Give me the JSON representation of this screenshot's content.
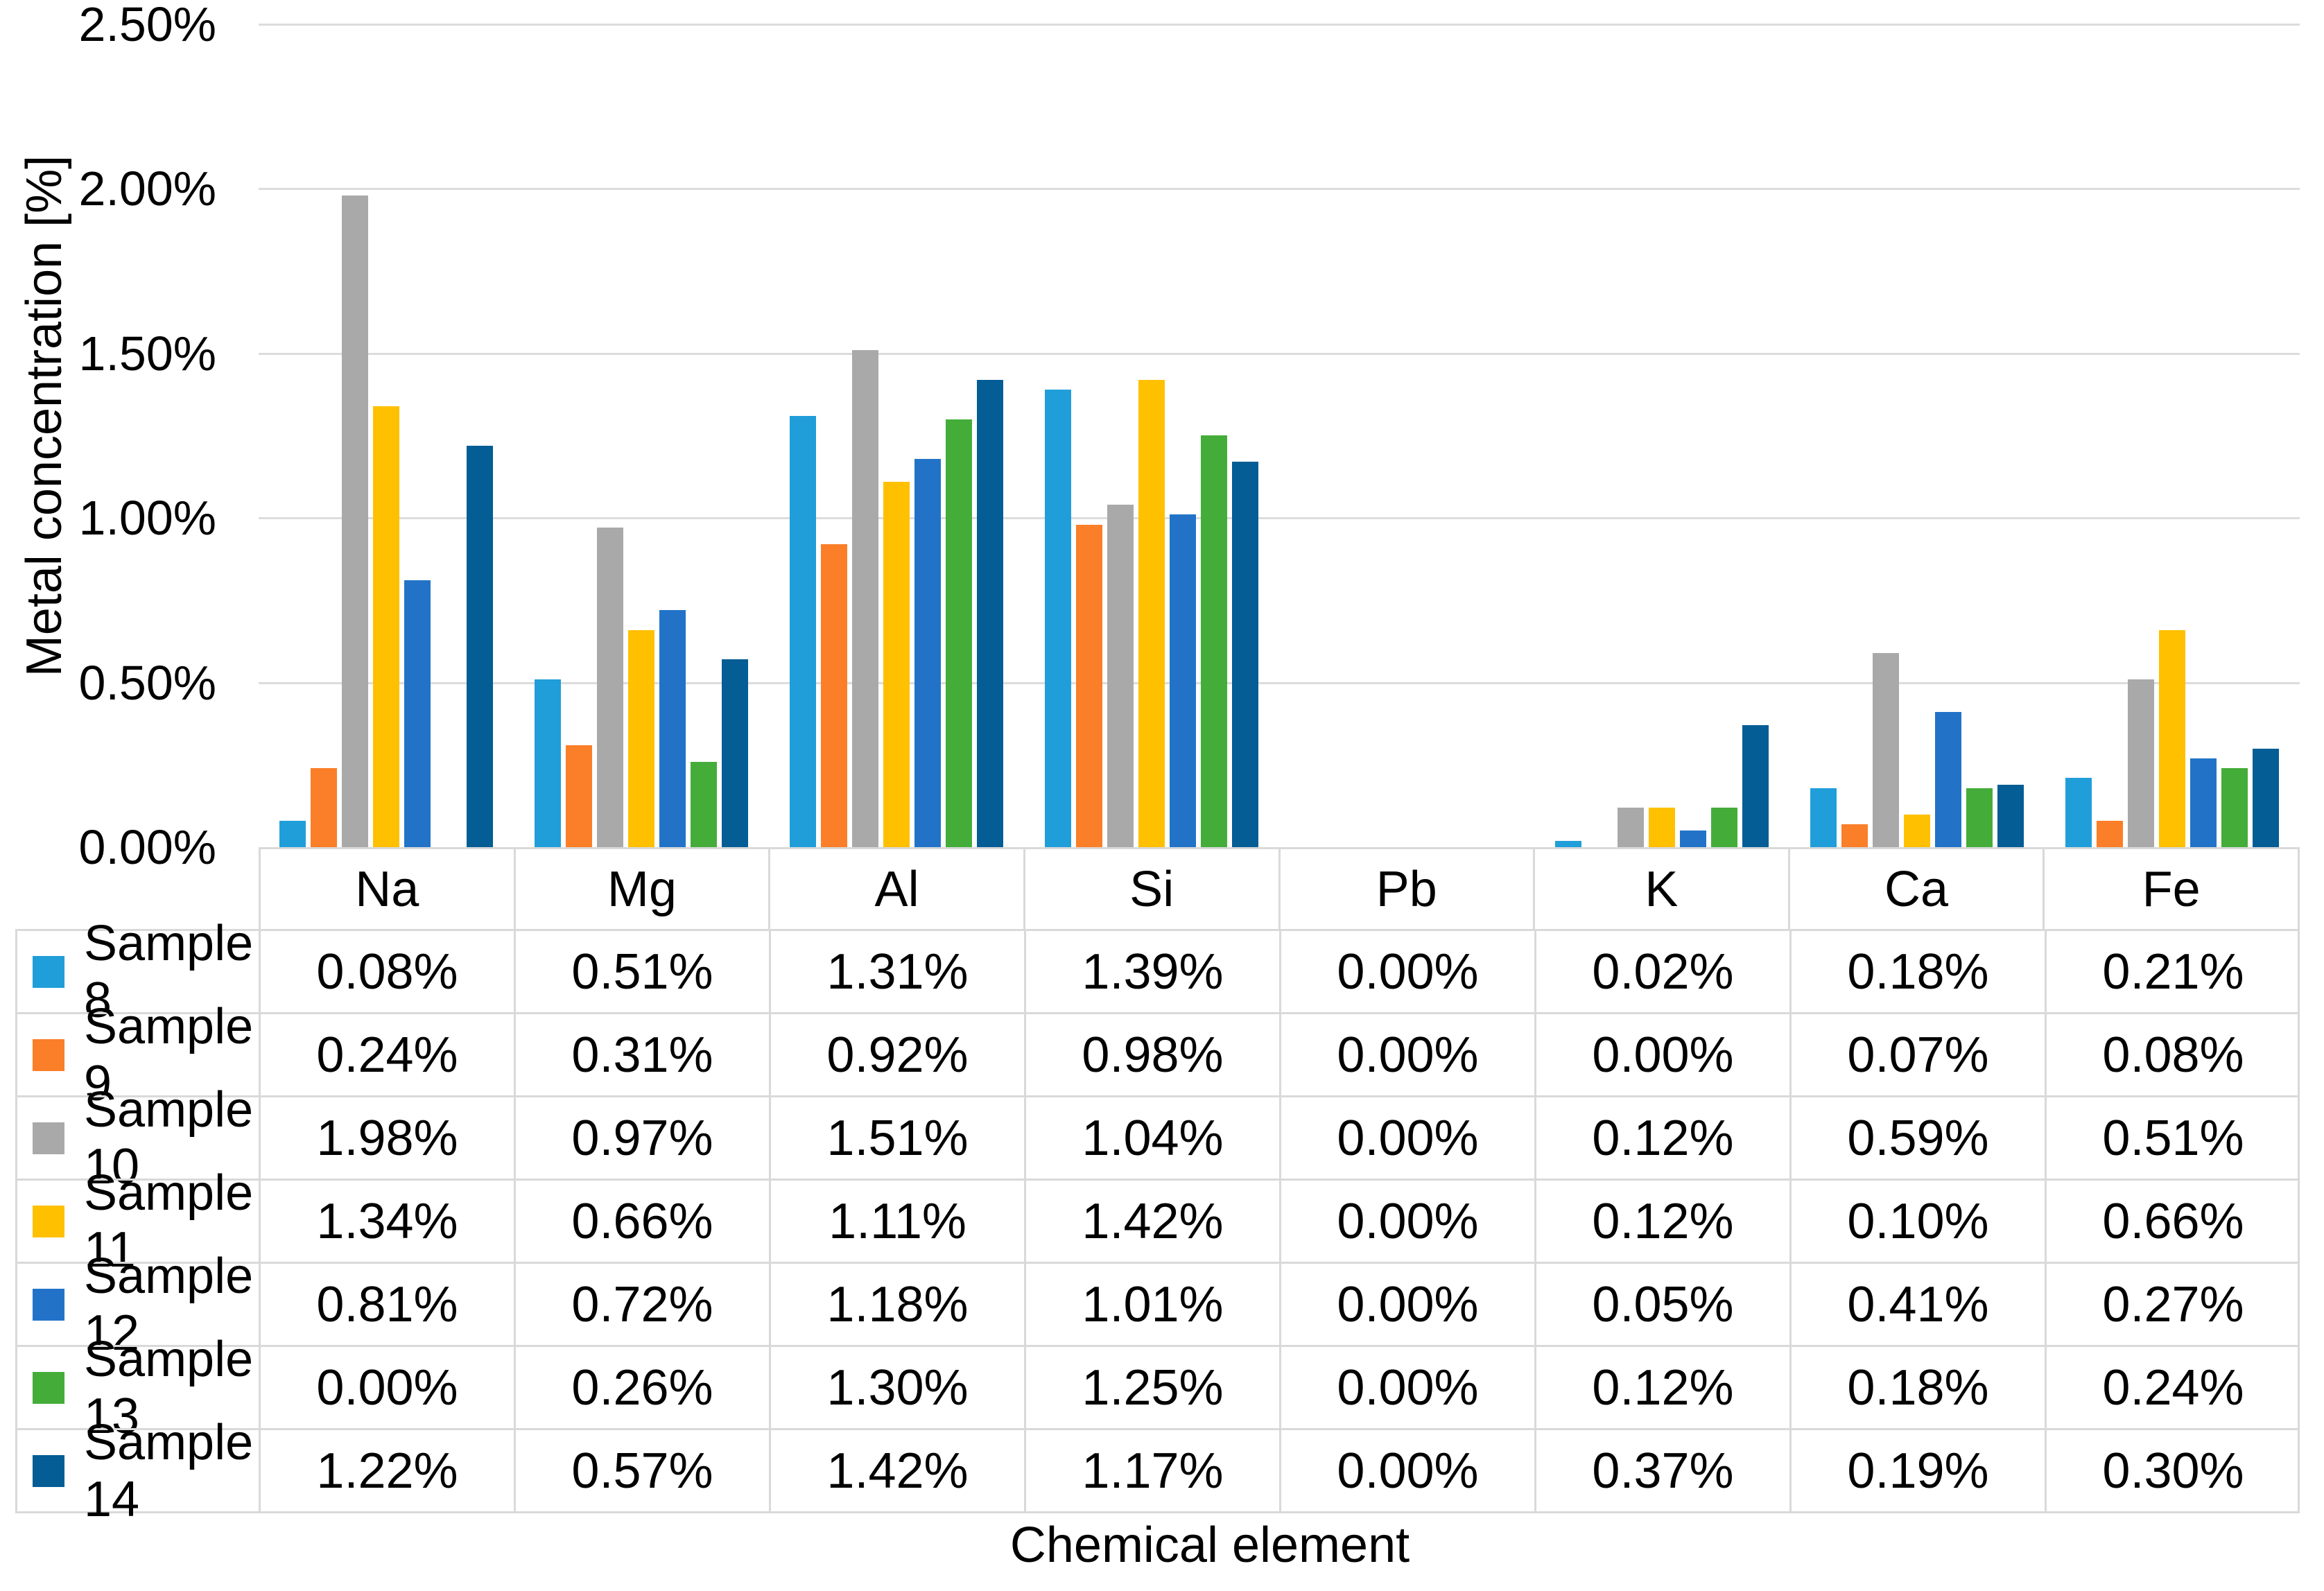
{
  "chart": {
    "y_axis_title": "Metal concentration [%]",
    "x_axis_title": "Chemical element"
  },
  "chart_data": {
    "type": "bar",
    "title": "",
    "xlabel": "Chemical element",
    "ylabel": "Metal concentration [%]",
    "ylim": [
      0,
      2.5
    ],
    "ytick_step": 0.5,
    "y_tick_labels": [
      "2.50%",
      "2.00%",
      "1.50%",
      "1.00%",
      "0.50%",
      "0.00%"
    ],
    "grid": true,
    "legend_position": "data-table-left-column",
    "value_format": "0.00%",
    "categories": [
      "Na",
      "Mg",
      "Al",
      "Si",
      "Pb",
      "K",
      "Ca",
      "Fe"
    ],
    "series": [
      {
        "name": "Sample 8",
        "color": "#209ED9",
        "values": [
          0.08,
          0.51,
          1.31,
          1.39,
          0.0,
          0.02,
          0.18,
          0.21
        ]
      },
      {
        "name": "Sample 9",
        "color": "#FB7E28",
        "values": [
          0.24,
          0.31,
          0.92,
          0.98,
          0.0,
          0.0,
          0.07,
          0.08
        ]
      },
      {
        "name": "Sample 10",
        "color": "#A9A9A9",
        "values": [
          1.98,
          0.97,
          1.51,
          1.04,
          0.0,
          0.12,
          0.59,
          0.51
        ]
      },
      {
        "name": "Sample 11",
        "color": "#FFC000",
        "values": [
          1.34,
          0.66,
          1.11,
          1.42,
          0.0,
          0.12,
          0.1,
          0.66
        ]
      },
      {
        "name": "Sample 12",
        "color": "#2273C8",
        "values": [
          0.81,
          0.72,
          1.18,
          1.01,
          0.0,
          0.05,
          0.41,
          0.27
        ]
      },
      {
        "name": "Sample 13",
        "color": "#44AD3A",
        "values": [
          0.0,
          0.26,
          1.3,
          1.25,
          0.0,
          0.12,
          0.18,
          0.24
        ]
      },
      {
        "name": "Sample 14",
        "color": "#045D94",
        "values": [
          1.22,
          0.57,
          1.42,
          1.17,
          0.0,
          0.37,
          0.19,
          0.3
        ]
      }
    ]
  }
}
